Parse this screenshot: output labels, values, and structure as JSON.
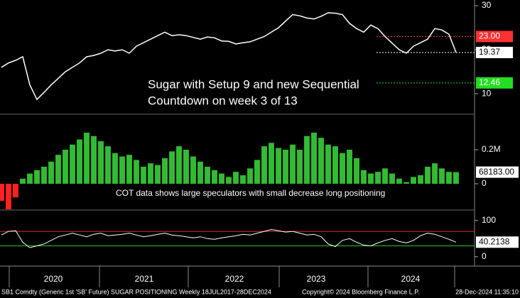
{
  "chart_data": [
    {
      "type": "line",
      "title": "Sugar with Setup 9 and new Sequential Countdown on week 3 of 13",
      "color": "#ffffff",
      "values": [
        16,
        17,
        17.6,
        18.4,
        12,
        8.7,
        10.3,
        12,
        13.5,
        15,
        16,
        17,
        18.4,
        18.7,
        19.2,
        20,
        19.7,
        20,
        19.2,
        20.8,
        21.6,
        22.4,
        23.2,
        24,
        23.2,
        23.4,
        23.2,
        22.8,
        22.4,
        22.9,
        22.7,
        22,
        21.9,
        21.3,
        21.6,
        21.8,
        22.4,
        23,
        24,
        25,
        26.5,
        28,
        27.7,
        27.2,
        27,
        27.6,
        28.4,
        28.3,
        28,
        26,
        24.8,
        24,
        25.6,
        24.8,
        23,
        21.5,
        20,
        19.2,
        20.8,
        21.6,
        22.4,
        24.8,
        24.5,
        23.5,
        19.37
      ],
      "ylim": [
        5.5,
        31.3
      ],
      "yticks": [
        10,
        20,
        30
      ],
      "levels": [
        {
          "value": 23.0,
          "label": "23.00",
          "color": "#ff3030"
        },
        {
          "value": 19.37,
          "label": "19.37",
          "color": "#ffffff"
        },
        {
          "value": 12.46,
          "label": "12.46",
          "color": "#22dd22"
        }
      ]
    },
    {
      "type": "bar",
      "title": "COT data shows large speculators with small decrease long positioning",
      "color": "#33bb33",
      "negative_color": "#ff2020",
      "values": [
        -100000,
        -150000,
        -80000,
        30000,
        60000,
        80000,
        100000,
        130000,
        170000,
        200000,
        230000,
        260000,
        300000,
        280000,
        250000,
        220000,
        180000,
        160000,
        170000,
        140000,
        100000,
        120000,
        110000,
        150000,
        190000,
        220000,
        200000,
        160000,
        130000,
        100000,
        80000,
        60000,
        40000,
        70000,
        50000,
        90000,
        140000,
        220000,
        240000,
        210000,
        200000,
        230000,
        200000,
        280000,
        300000,
        270000,
        230000,
        220000,
        180000,
        200000,
        150000,
        80000,
        60000,
        70000,
        90000,
        60000,
        30000,
        10000,
        40000,
        50000,
        100000,
        120000,
        90000,
        70000,
        68183
      ],
      "last_label": "68183.00",
      "ylim": [
        -150000,
        404000
      ],
      "yticks": [
        0,
        {
          "value": 200000,
          "label": "0.2M"
        }
      ]
    },
    {
      "type": "line",
      "color": "#ffffff",
      "values": [
        60,
        70,
        72,
        40,
        25,
        30,
        35,
        45,
        55,
        60,
        65,
        60,
        55,
        62,
        65,
        58,
        60,
        62,
        65,
        60,
        55,
        58,
        62,
        65,
        60,
        58,
        55,
        52,
        55,
        50,
        48,
        52,
        55,
        58,
        62,
        60,
        65,
        70,
        75,
        72,
        68,
        70,
        65,
        60,
        62,
        55,
        35,
        28,
        45,
        50,
        40,
        32,
        30,
        38,
        45,
        50,
        42,
        38,
        45,
        58,
        65,
        62,
        55,
        48,
        40.2138
      ],
      "last_label": "40.2138",
      "ylim": [
        -20,
        127
      ],
      "yticks": [
        0,
        100
      ],
      "levels": [
        {
          "value": 70,
          "color": "#e03030"
        },
        {
          "value": 30,
          "color": "#22cc22"
        }
      ]
    }
  ],
  "x_axis": {
    "labels": [
      "2020",
      "2021",
      "2022",
      "2023",
      "2024"
    ]
  },
  "footer": {
    "left": "SB1 Comdty (Generic 1st 'SB' Future) SUGAR POSITIONING  Weekly 18JUL2017-28DEC2024",
    "center": "Copyright© 2024 Bloomberg Finance L.P.",
    "right": "28-Dec-2024 11:35:10"
  }
}
